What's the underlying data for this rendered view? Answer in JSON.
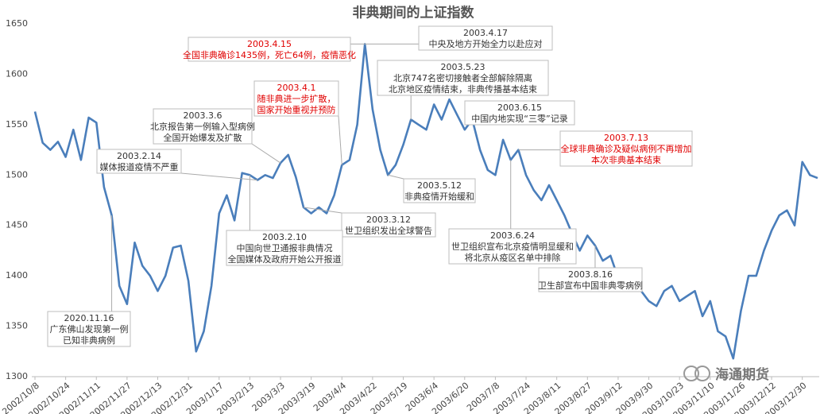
{
  "chart_data": {
    "type": "line",
    "title": "非典期间的上证指数",
    "categories": [
      "2002/10/8",
      null,
      null,
      null,
      "2002/10/24",
      null,
      null,
      null,
      "2002/11/11",
      null,
      null,
      null,
      "2002/11/27",
      null,
      null,
      null,
      "2002/12/13",
      null,
      null,
      null,
      "2002/12/31",
      null,
      null,
      null,
      "2003/1/17",
      null,
      null,
      null,
      "2003/2/13",
      null,
      null,
      null,
      "2003/3/3",
      null,
      null,
      null,
      "2003/3/19",
      null,
      null,
      null,
      "2003/4/4",
      null,
      null,
      null,
      "2003/4/22",
      null,
      null,
      null,
      "2003/5/19",
      null,
      null,
      null,
      "2003/6/4",
      null,
      null,
      null,
      "2003/6/20",
      null,
      null,
      null,
      "2003/7/8",
      null,
      null,
      null,
      "2003/7/24",
      null,
      null,
      null,
      "2003/8/11",
      null,
      null,
      null,
      "2003/8/27",
      null,
      null,
      null,
      "2003/9/12",
      null,
      null,
      null,
      "2003/9/30",
      null,
      null,
      null,
      "2003/10/23",
      null,
      null,
      null,
      "2003/11/10",
      null,
      null,
      null,
      "2003/11/26",
      null,
      null,
      null,
      "2003/12/12",
      null,
      null,
      null,
      "2003/12/30",
      null,
      null
    ],
    "series": [
      {
        "name": "上证指数",
        "color": "#4a7ebb",
        "values": [
          1563,
          1532,
          1525,
          1533,
          1518,
          1545,
          1515,
          1557,
          1552,
          1488,
          1460,
          1390,
          1372,
          1433,
          1410,
          1400,
          1385,
          1400,
          1428,
          1430,
          1395,
          1325,
          1345,
          1390,
          1462,
          1480,
          1455,
          1502,
          1500,
          1495,
          1500,
          1497,
          1512,
          1520,
          1498,
          1468,
          1462,
          1468,
          1462,
          1480,
          1510,
          1515,
          1550,
          1630,
          1565,
          1525,
          1500,
          1510,
          1530,
          1555,
          1550,
          1545,
          1570,
          1555,
          1575,
          1560,
          1545,
          1555,
          1525,
          1505,
          1500,
          1535,
          1515,
          1525,
          1500,
          1485,
          1475,
          1490,
          1475,
          1460,
          1442,
          1425,
          1440,
          1430,
          1415,
          1420,
          1398,
          1392,
          1400,
          1385,
          1375,
          1370,
          1385,
          1390,
          1375,
          1380,
          1385,
          1360,
          1375,
          1345,
          1340,
          1318,
          1365,
          1400,
          1400,
          1425,
          1445,
          1460,
          1465,
          1450,
          1513,
          1500,
          1497
        ]
      }
    ],
    "ylim": [
      1300,
      1650
    ],
    "yticks": [
      1300,
      1350,
      1400,
      1450,
      1500,
      1550,
      1600,
      1650
    ],
    "grid": false,
    "annotations": [
      {
        "date": "2003.4.15",
        "text": [
          "全国非典确诊1435例，死亡64例，疫情恶化"
        ],
        "color": "red"
      },
      {
        "date": "2003.4.17",
        "text": [
          "中央及地方开始全力以赴应对"
        ],
        "color": "black"
      },
      {
        "date": "2003.5.23",
        "text": [
          "北京747名密切接触者全部解除隔离",
          "北京地区疫情结束，非典传播基本结束"
        ],
        "color": "black"
      },
      {
        "date": "2003.4.1",
        "text": [
          "随非典进一步扩散，",
          "国家开始重视并预防"
        ],
        "color": "red"
      },
      {
        "date": "2003.3.6",
        "text": [
          "北京报告第一例输入型病例",
          "全国开始爆发及扩散"
        ],
        "color": "black"
      },
      {
        "date": "2003.6.15",
        "text": [
          "中国内地实现“三零”记录"
        ],
        "color": "black"
      },
      {
        "date": "2003.2.14",
        "text": [
          "媒体报道疫情不严重"
        ],
        "color": "black"
      },
      {
        "date": "2003.7.13",
        "text": [
          "全球非典确诊及疑似病例不再增加",
          "本次非典基本结束"
        ],
        "color": "red"
      },
      {
        "date": "2003.5.12",
        "text": [
          "非典疫情开始缓和"
        ],
        "color": "black"
      },
      {
        "date": "2003.3.12",
        "text": [
          "世卫组织发出全球警告"
        ],
        "color": "black"
      },
      {
        "date": "2003.2.10",
        "text": [
          "中国向世卫通报非典情况",
          "全国媒体及政府开始公开报道"
        ],
        "color": "black"
      },
      {
        "date": "2003.6.24",
        "text": [
          "世卫组织宣布北京疫情明显缓和",
          "将北京从疫区名单中排除"
        ],
        "color": "black"
      },
      {
        "date": "2003.8.16",
        "text": [
          "卫生部宣布中国非典零病例"
        ],
        "color": "black"
      },
      {
        "date": "2020.11.16",
        "text": [
          "广东佛山发现第一例",
          "已知非典病例"
        ],
        "color": "black"
      }
    ],
    "watermark": "海通期货"
  }
}
